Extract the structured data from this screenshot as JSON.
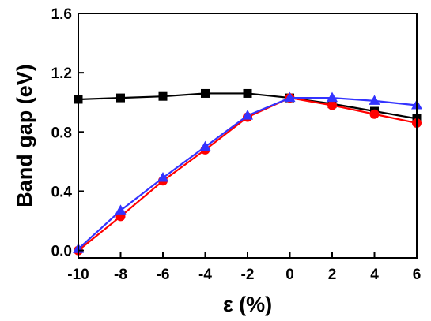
{
  "chart_data": {
    "type": "line",
    "xlabel": "ε (%)",
    "ylabel": "Band gap (eV)",
    "xlim": [
      -10,
      6
    ],
    "ylim": [
      -0.05,
      1.6
    ],
    "xticks": [
      -10,
      -8,
      -6,
      -4,
      -2,
      0,
      2,
      4,
      6
    ],
    "yticks": [
      0.0,
      0.4,
      0.8,
      1.2,
      1.6
    ],
    "xtick_labels": [
      "-10",
      "-8",
      "-6",
      "-4",
      "-2",
      "0",
      "2",
      "4",
      "6"
    ],
    "ytick_labels": [
      "0.0",
      "0.4",
      "0.8",
      "1.2",
      "1.6"
    ],
    "grid": false,
    "legend": "none",
    "series": [
      {
        "marker": "square",
        "color": "#000000",
        "x": [
          -10,
          -8,
          -6,
          -4,
          -2,
          0,
          2,
          4,
          6
        ],
        "y": [
          1.02,
          1.03,
          1.04,
          1.06,
          1.06,
          1.03,
          0.99,
          0.94,
          0.89
        ]
      },
      {
        "marker": "circle",
        "color": "#ff0000",
        "x": [
          -10,
          -8,
          -6,
          -4,
          -2,
          0,
          2,
          4,
          6
        ],
        "y": [
          0.0,
          0.23,
          0.47,
          0.68,
          0.9,
          1.03,
          0.98,
          0.92,
          0.86
        ]
      },
      {
        "marker": "triangle",
        "color": "#3333ff",
        "x": [
          -10,
          -8,
          -6,
          -4,
          -2,
          0,
          2,
          4,
          6
        ],
        "y": [
          0.01,
          0.27,
          0.49,
          0.7,
          0.91,
          1.03,
          1.03,
          1.01,
          0.98
        ]
      }
    ]
  }
}
